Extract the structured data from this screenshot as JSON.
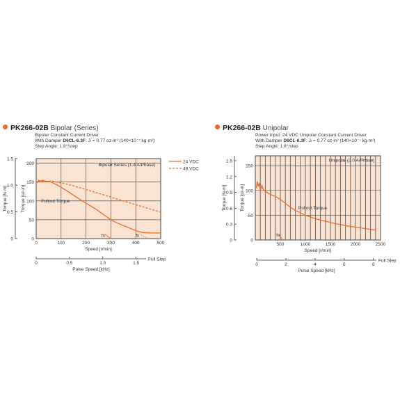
{
  "colors": {
    "accent": "#ee6a2a",
    "plot_bg": "#fbe3d2",
    "grid": "#555555",
    "series": "#ee6a2a"
  },
  "left": {
    "model": "PK266-02B",
    "variant": "Bipolar (Series)",
    "driver_line": "Bipolar Constant Current Driver",
    "damper_prefix": "With Damper ",
    "damper_model": "D6CL-6.3F",
    "damper_suffix": ": Jₗ = 0.77 oz-in² (140×10⁻⁷ kg·m²)",
    "step_angle": "Step Angle: 1.8°/step",
    "ylabel_nm": "Torque [N·m]",
    "ylabel_ozin": "Torque [oz-in]",
    "xlabel_speed": "Speed [r/min]",
    "xlabel_pulse": "Pulse Speed [kHz]",
    "full_step": "Full Step",
    "pullout_label": "Pullout Torque",
    "fs_label": "fs",
    "legend_note": "Bipolar Series (1.4 A/Phase)",
    "legend": [
      "24 VDC",
      "48 VDC"
    ],
    "nm_ticks": [
      "0",
      "0.5",
      "1.0",
      "1.5"
    ],
    "ozin_ticks": [
      "0",
      "50",
      "100",
      "150",
      "200"
    ],
    "speed_ticks": [
      "0",
      "100",
      "200",
      "300",
      "400",
      "500"
    ],
    "pulse_ticks": [
      "0",
      "0.5",
      "1.0",
      "1.5"
    ]
  },
  "right": {
    "model": "PK266-02B",
    "variant": "Unipolar",
    "power_line": "Power Input: 24 VDC    Unipolar Constant Current Driver",
    "damper_prefix": "With Damper ",
    "damper_model": "D6CL-6.3F",
    "damper_suffix": ": Jₗ = 0.77 oz-in² (140×10⁻⁷ kg·m²)",
    "step_angle": "Step Angle: 1.8°/step",
    "ylabel_nm": "Torque [N·m]",
    "ylabel_ozin": "Torque [oz-in]",
    "xlabel_speed": "Speed [r/min]",
    "xlabel_pulse": "Pulse Speed [kHz]",
    "full_step": "Full Step",
    "pullout_label": "Pullout Torque",
    "fs_label": "fs",
    "legend_note": "Unipolar (2.0 A/Phase)",
    "nm_ticks": [
      "0",
      "0.3",
      "0.6",
      "0.9",
      "1.2",
      "1.5"
    ],
    "ozin_ticks": [
      "0",
      "50",
      "100",
      "150"
    ],
    "speed_ticks": [
      "500",
      "1000",
      "1500",
      "2000",
      "2500"
    ],
    "pulse_ticks": [
      "0",
      "2",
      "4",
      "6",
      "8"
    ]
  },
  "chart_data": [
    {
      "type": "line",
      "title": "PK266-02B Bipolar (Series)",
      "xlabel": "Speed [r/min]",
      "ylabel": "Torque [oz-in]",
      "xlim": [
        0,
        500
      ],
      "ylim": [
        0,
        212
      ],
      "grid": true,
      "legend_position": "right",
      "series": [
        {
          "name": "24 VDC",
          "x": [
            5,
            10,
            15,
            25,
            40,
            60,
            90,
            120,
            150,
            180,
            210,
            240,
            270,
            300,
            330,
            360,
            390,
            410,
            430,
            450,
            480,
            500
          ],
          "y": [
            148,
            155,
            152,
            155,
            152,
            150,
            140,
            128,
            115,
            102,
            90,
            78,
            64,
            50,
            40,
            32,
            24,
            19,
            16,
            15,
            15,
            15
          ]
        },
        {
          "name": "48 VDC",
          "x": [
            5,
            10,
            15,
            25,
            40,
            60,
            100,
            150,
            200,
            250,
            300,
            350,
            400,
            450,
            500
          ],
          "y": [
            148,
            155,
            150,
            152,
            152,
            152,
            148,
            140,
            130,
            120,
            110,
            100,
            90,
            80,
            70
          ]
        },
        {
          "name": "fs 24 VDC",
          "x": [
            275,
            300
          ],
          "y": [
            12,
            0
          ]
        },
        {
          "name": "fs 48 VDC",
          "x": [
            420,
            450
          ],
          "y": [
            10,
            0
          ]
        }
      ]
    },
    {
      "type": "line",
      "title": "PK266-02B Unipolar",
      "xlabel": "Speed [r/min]",
      "ylabel": "Torque [oz-in]",
      "xlim": [
        0,
        2500
      ],
      "ylim": [
        0,
        170
      ],
      "grid": true,
      "series": [
        {
          "name": "24 VDC",
          "x": [
            20,
            40,
            60,
            80,
            100,
            130,
            160,
            200,
            250,
            300,
            400,
            500,
            600,
            700,
            800,
            900,
            1000,
            1200,
            1400,
            1600,
            1800,
            2000,
            2200,
            2400
          ],
          "y": [
            105,
            118,
            108,
            115,
            100,
            110,
            102,
            98,
            95,
            92,
            88,
            82,
            74,
            66,
            60,
            55,
            50,
            43,
            38,
            33,
            29,
            26,
            23,
            20
          ]
        },
        {
          "name": "fs 24 VDC",
          "x": [
            470,
            550
          ],
          "y": [
            12,
            0
          ]
        }
      ]
    }
  ]
}
